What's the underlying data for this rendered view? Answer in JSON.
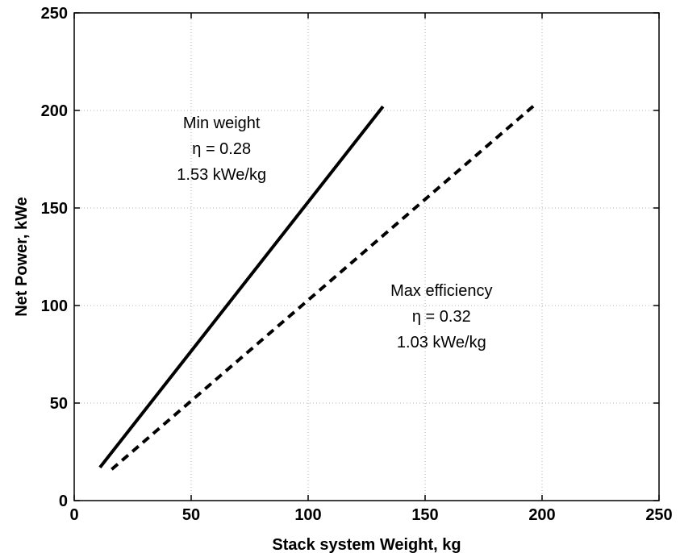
{
  "chart_data": {
    "type": "line",
    "xlabel": "Stack system Weight, kg",
    "ylabel": "Net Power, kWe",
    "xlim": [
      0,
      250
    ],
    "ylim": [
      0,
      250
    ],
    "xticks": [
      0,
      50,
      100,
      150,
      200,
      250
    ],
    "yticks": [
      0,
      50,
      100,
      150,
      200,
      250
    ],
    "grid": true,
    "series": [
      {
        "style": "solid",
        "color": "#000000",
        "x": [
          11,
          132
        ],
        "y": [
          17,
          202
        ]
      },
      {
        "style": "dashed",
        "color": "#000000",
        "x": [
          16,
          198
        ],
        "y": [
          16,
          204
        ]
      }
    ],
    "annotations": [
      {
        "lines": [
          "Min weight",
          "η = 0.28",
          "1.53 kWe/kg"
        ],
        "x": 63,
        "y": 191
      },
      {
        "lines": [
          "Max efficiency",
          "η = 0.32",
          "1.03 kWe/kg"
        ],
        "x": 157,
        "y": 105
      }
    ]
  }
}
